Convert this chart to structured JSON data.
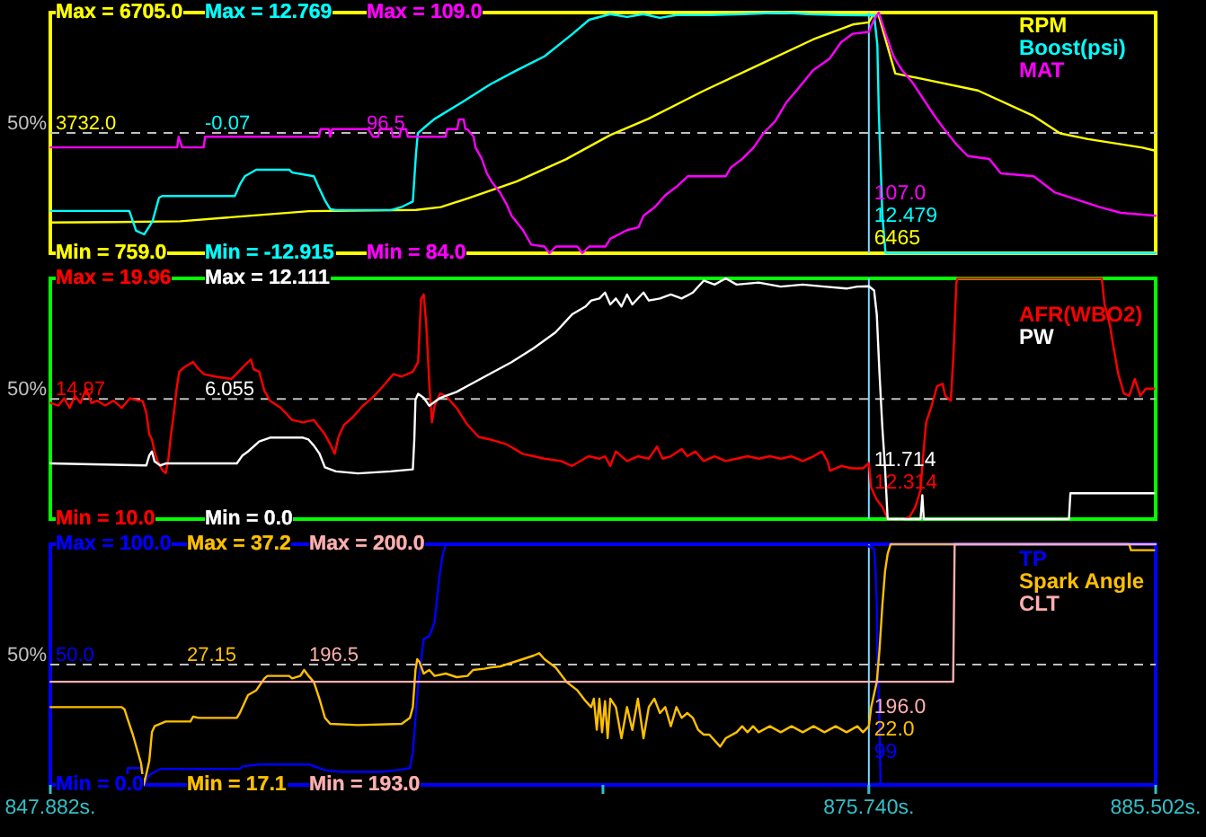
{
  "chart_data": [
    {
      "type": "line",
      "xlim": [
        847.882,
        885.502
      ],
      "tick_labels": "y",
      "legend": "top right",
      "ylim": [
        759,
        6705
      ],
      "yticks": [
        {
          "value": 759,
          "label": "Min = 759.0"
        },
        {
          "value": 3732,
          "label": "3732.0"
        },
        {
          "value": 6705,
          "label": "Max = 6705.0"
        }
      ],
      "y2lim": [
        -12.915,
        12.769
      ],
      "y2ticks": [
        {
          "value": -12.915,
          "label": "Min = -12.915"
        },
        -0.07,
        {
          "value": 12.769,
          "label": "Max = 12.769"
        }
      ],
      "y3lim": [
        84,
        109
      ],
      "y3ticks": [
        {
          "value": 84,
          "label": "Min = 84.0"
        },
        96.5,
        {
          "value": 109,
          "label": "Max = 109.0"
        }
      ],
      "ref_lines": [
        {
          "axis": "y",
          "value": 3732,
          "color": "#c0c0c0",
          "line_style": "dashed"
        },
        {
          "axis": "x",
          "value": 875.74,
          "color": "#7fd8ff"
        }
      ],
      "annotations": [
        "50%",
        "6465",
        "12.479",
        "107.0"
      ],
      "series": [
        {
          "name": "RPM",
          "color": "#ffff00",
          "axis": "y",
          "x": [
            847.89,
            850.13,
            852.31,
            856.69,
            860.33,
            861.17,
            862.07,
            863.75,
            865.43,
            866.94,
            868.23,
            870.14,
            871.99,
            873.84,
            875.19,
            875.74,
            875.92,
            876.08,
            876.64,
            877.6,
            879.45,
            881.35,
            882.25,
            883.2,
            885.05,
            885.45
          ],
          "values": [
            1520,
            1530,
            1550,
            1800,
            1830,
            1900,
            2110,
            2530,
            3080,
            3680,
            4080,
            4780,
            5410,
            6040,
            6410,
            6465,
            6705,
            6620,
            5200,
            5060,
            4780,
            4150,
            3720,
            3580,
            3370,
            3300
          ]
        },
        {
          "name": "Boost(psi)",
          "color": "#00ffff",
          "axis": "y2",
          "x": [
            847.89,
            850.41,
            850.57,
            850.8,
            851.08,
            851.36,
            851.58,
            851.69,
            854.16,
            854.33,
            854.5,
            854.89,
            856.01,
            856.12,
            856.85,
            857.02,
            857.25,
            857.41,
            857.58,
            859.49,
            859.82,
            860.22,
            860.33,
            860.39,
            860.61,
            860.95,
            861.9,
            862.85,
            863.75,
            864.7,
            865.66,
            866.22,
            866.94,
            867.51,
            868.07,
            868.63,
            869.19,
            870.31,
            871.43,
            872.83,
            873.67,
            874.79,
            875.74,
            875.92,
            876.03,
            876.08,
            876.2,
            876.31,
            885.5
          ],
          "values": [
            -8.4,
            -8.4,
            -8.4,
            -10.5,
            -10.9,
            -9.5,
            -7,
            -6.8,
            -6.8,
            -5.6,
            -4.7,
            -4,
            -4,
            -4.3,
            -4.7,
            -5.9,
            -7.4,
            -8.2,
            -8.3,
            -8.3,
            -8,
            -7.4,
            -2.2,
            -0.1,
            0.5,
            1.4,
            3.2,
            5.1,
            6.6,
            8.1,
            10.5,
            12,
            12.6,
            12.3,
            12.6,
            12.2,
            12.5,
            12.5,
            12.6,
            12.769,
            12.6,
            12.5,
            12.479,
            12.5,
            9.3,
            2,
            -8.9,
            -12.915,
            -12.915
          ]
        },
        {
          "name": "MAT",
          "color": "#ff00ff",
          "axis": "y3",
          "x": [
            847.89,
            852.2,
            852.25,
            852.37,
            853.1,
            853.15,
            857.02,
            857.08,
            857.36,
            857.41,
            857.47,
            858.7,
            858.87,
            859.04,
            859.1,
            859.49,
            859.54,
            859.77,
            859.82,
            859.99,
            860.05,
            861.34,
            861.39,
            861.73,
            861.79,
            861.95,
            862.01,
            862.07,
            862.29,
            862.35,
            862.57,
            862.74,
            862.91,
            863.19,
            863.41,
            863.58,
            863.97,
            864.25,
            864.7,
            864.87,
            865.09,
            865.82,
            865.99,
            866.22,
            866.78,
            866.94,
            867.51,
            867.9,
            868.07,
            868.46,
            868.8,
            869.19,
            869.58,
            870.87,
            871.04,
            871.43,
            871.82,
            872.16,
            872.55,
            872.94,
            873.28,
            873.84,
            874.4,
            874.79,
            875.19,
            875.74,
            875.92,
            876.08,
            876.31,
            876.59,
            876.87,
            877.21,
            877.6,
            877.99,
            878.33,
            878.72,
            879.11,
            879.84,
            880.23,
            881.35,
            882.08,
            883.6,
            884.32,
            885.5
          ],
          "values": [
            95,
            95,
            96.1,
            95,
            95,
            96.1,
            96.1,
            96.9,
            96.9,
            96.1,
            96.9,
            96.9,
            96.1,
            96.1,
            96.9,
            96.9,
            96.1,
            96.1,
            96.9,
            96.9,
            96.1,
            96.1,
            96.9,
            96.9,
            97.9,
            97.9,
            96.9,
            96.9,
            96.1,
            95,
            93.8,
            92.3,
            91.4,
            90.3,
            89.1,
            87.9,
            86.4,
            84.9,
            84.7,
            84,
            84.7,
            84.7,
            84,
            84.7,
            84.7,
            85.5,
            86.4,
            86.7,
            87.9,
            88.8,
            90,
            90.9,
            92,
            92,
            92.9,
            93.8,
            95,
            96.5,
            97.7,
            99.7,
            100.9,
            103,
            104.2,
            105.9,
            106.8,
            107,
            108.3,
            109,
            106.8,
            104.4,
            103,
            101.8,
            100,
            98.2,
            96.8,
            95.3,
            94.1,
            93.8,
            92.3,
            92,
            90.3,
            88.8,
            88.2,
            87.9
          ]
        }
      ]
    },
    {
      "type": "line",
      "xlim": [
        847.882,
        885.502
      ],
      "tick_labels": "y",
      "legend": "top right",
      "ylim": [
        10,
        19.96
      ],
      "yticks": [
        {
          "value": 10,
          "label": "Min = 10.0"
        },
        14.97,
        {
          "value": 19.96,
          "label": "Max = 19.96"
        }
      ],
      "y2lim": [
        0,
        12.111
      ],
      "y2ticks": [
        {
          "value": 0,
          "label": "Min = 0.0"
        },
        6.055,
        {
          "value": 12.111,
          "label": "Max = 12.111"
        }
      ],
      "ref_lines": [
        {
          "axis": "y",
          "value": 14.97,
          "color": "#c0c0c0",
          "line_style": "dashed"
        },
        {
          "axis": "x",
          "value": 875.74,
          "color": "#7fd8ff"
        }
      ],
      "annotations": [
        "50%",
        "12.314",
        "11.714"
      ],
      "series": [
        {
          "name": "AFR(WBO2)",
          "color": "#ff0000",
          "axis": "y",
          "x": [
            847.89,
            848.16,
            848.35,
            848.54,
            848.72,
            848.91,
            849.1,
            849.28,
            849.47,
            849.75,
            850.03,
            850.31,
            850.59,
            850.87,
            851.02,
            851.15,
            851.25,
            851.34,
            851.43,
            851.53,
            851.71,
            851.81,
            851.9,
            851.99,
            852.09,
            852.18,
            852.27,
            852.46,
            852.74,
            852.93,
            853.11,
            853.49,
            854.05,
            854.61,
            854.71,
            854.8,
            854.99,
            855.17,
            855.36,
            855.73,
            856.11,
            856.48,
            856.85,
            857.23,
            857.41,
            857.56,
            857.69,
            857.88,
            858.16,
            858.53,
            858.91,
            859.28,
            859.56,
            859.84,
            860.22,
            860.4,
            860.5,
            860.59,
            860.68,
            860.78,
            860.87,
            860.96,
            861.15,
            861.34,
            861.71,
            862.08,
            862.46,
            862.83,
            863.4,
            863.96,
            864.33,
            864.7,
            865.26,
            865.64,
            866.2,
            866.57,
            866.76,
            866.94,
            867.13,
            867.32,
            867.51,
            867.88,
            868.25,
            868.53,
            868.72,
            869,
            869.37,
            869.56,
            869.84,
            870.12,
            870.49,
            870.87,
            871.24,
            871.61,
            871.99,
            872.37,
            872.74,
            873.11,
            873.49,
            873.86,
            874.14,
            874.33,
            874.42,
            874.8,
            875.17,
            875.54,
            875.74,
            875.82,
            876.01,
            876.2,
            876.38,
            876.94,
            877.13,
            877.32,
            877.5,
            877.6,
            877.69,
            877.88,
            878.06,
            878.25,
            878.34,
            878.53,
            878.62,
            878.72,
            878.76,
            883.67,
            883.76,
            883.95,
            884.04,
            884.23,
            884.42,
            884.6,
            884.79,
            884.98,
            885.17,
            885.45
          ],
          "values": [
            14.8,
            14.7,
            15,
            14.6,
            15.1,
            14.8,
            15.4,
            14.8,
            14.9,
            14.7,
            14.9,
            14.6,
            15,
            14.9,
            14.9,
            14.4,
            13.5,
            13.3,
            12.8,
            12.4,
            12,
            11.9,
            12.5,
            13.5,
            14.4,
            15.4,
            16.1,
            16.3,
            16.5,
            16.2,
            16,
            15.9,
            15.8,
            16.5,
            16.6,
            16.2,
            16.1,
            15.3,
            14.9,
            14.6,
            14.1,
            14,
            14.1,
            13.5,
            13.1,
            12.7,
            13.4,
            13.9,
            14.2,
            14.7,
            15.1,
            15.6,
            16,
            15.9,
            16.1,
            16.5,
            19.1,
            19.3,
            18,
            15.6,
            14,
            14.7,
            15.2,
            15.1,
            14.6,
            13.9,
            13.4,
            13.3,
            13.1,
            12.7,
            12.6,
            12.5,
            12.4,
            12.2,
            12.6,
            12.5,
            12.6,
            12.2,
            12.8,
            12.6,
            12.4,
            12.6,
            12.5,
            13,
            12.5,
            12.6,
            12.9,
            12.6,
            12.8,
            12.4,
            12.6,
            12.4,
            12.5,
            12.6,
            12.5,
            12.6,
            12.5,
            12.6,
            12.4,
            12.6,
            12.8,
            12.4,
            12,
            12.2,
            12.1,
            12.1,
            12.314,
            11.3,
            10.8,
            10.5,
            10,
            10,
            10.1,
            10.5,
            11.2,
            12.8,
            14,
            14.7,
            15.5,
            15.6,
            15.1,
            14.9,
            16.8,
            19.8,
            19.96,
            19.96,
            18.9,
            18,
            17.3,
            16,
            15.2,
            15.1,
            15.8,
            15.1,
            15.4,
            15.4
          ]
        },
        {
          "name": "PW",
          "color": "#ffffff",
          "axis": "y2",
          "x": [
            847.89,
            851.15,
            851.25,
            851.34,
            851.43,
            851.62,
            851.81,
            854.23,
            854.42,
            854.61,
            854.99,
            855.36,
            856.48,
            856.67,
            856.85,
            857.04,
            857.23,
            857.6,
            858.35,
            859.47,
            860.22,
            860.27,
            860.31,
            860.4,
            860.59,
            860.78,
            860.96,
            861.15,
            861.71,
            862.08,
            862.83,
            863.58,
            864.33,
            865.08,
            865.64,
            866.1,
            866.29,
            866.57,
            866.76,
            866.94,
            867.13,
            867.32,
            867.51,
            867.69,
            868.07,
            868.25,
            868.63,
            869,
            869.37,
            869.75,
            870.12,
            870.49,
            870.87,
            871.24,
            871.99,
            872.74,
            873.49,
            874.23,
            874.98,
            875.35,
            875.74,
            875.92,
            876.01,
            876.1,
            876.2,
            876.29,
            876.38,
            877.5,
            877.56,
            877.61,
            882.55,
            882.6,
            885.45
          ],
          "values": [
            2.8,
            2.7,
            3.2,
            3.4,
            2.9,
            2.7,
            2.8,
            2.8,
            3.2,
            3.4,
            3.9,
            4.1,
            4.1,
            4,
            3.7,
            3.3,
            2.6,
            2.4,
            2.3,
            2.4,
            2.5,
            4,
            6,
            6.3,
            6.1,
            5.7,
            5.9,
            6.1,
            6.4,
            6.7,
            7.3,
            7.9,
            8.6,
            9.4,
            10.3,
            10.7,
            11,
            11.1,
            11.4,
            10.8,
            11.1,
            10.7,
            11.3,
            10.8,
            11.4,
            11,
            11.1,
            11.3,
            11.1,
            11.4,
            12,
            11.8,
            12.111,
            11.8,
            11.9,
            11.7,
            11.8,
            11.7,
            11.6,
            11.7,
            11.714,
            11.5,
            10.3,
            7.4,
            4.6,
            2.6,
            0,
            0,
            1.2,
            0,
            0,
            1.3,
            1.3
          ]
        }
      ]
    },
    {
      "type": "line",
      "xlim": [
        847.882,
        885.502
      ],
      "legend": "top right",
      "xticks": [
        {
          "value": 847.882,
          "label": "847.882s."
        },
        {
          "value": 857.29,
          "label": null
        },
        {
          "value": 866.69,
          "label": null
        },
        {
          "value": 875.74,
          "label": "875.740s."
        },
        {
          "value": 885.502,
          "label": "885.502s."
        }
      ],
      "ylim": [
        0,
        100
      ],
      "yticks": [
        {
          "value": 0,
          "label": "Min = 0.0"
        },
        {
          "value": 50,
          "label": "50.0"
        },
        {
          "value": 100,
          "label": "Max = 100.0"
        }
      ],
      "y2lim": [
        17.1,
        37.2
      ],
      "y2ticks": [
        {
          "value": 17.1,
          "label": "Min = 17.1"
        },
        27.15,
        {
          "value": 37.2,
          "label": "Max = 37.2"
        }
      ],
      "y3lim": [
        193,
        200
      ],
      "y3ticks": [
        {
          "value": 193,
          "label": "Min = 193.0"
        },
        196.5,
        {
          "value": 200,
          "label": "Max = 200.0"
        }
      ],
      "ref_lines": [
        {
          "axis": "y",
          "value": 50,
          "color": "#c0c0c0",
          "line_style": "dashed"
        },
        {
          "axis": "x",
          "value": 875.74,
          "color": "#7fd8ff"
        }
      ],
      "annotations": [
        "50%",
        "99",
        "22.0",
        "196.0"
      ],
      "series": [
        {
          "name": "TP",
          "color": "#0000ff",
          "axis": "y",
          "x": [
            847.89,
            850.46,
            850.52,
            850.97,
            851.08,
            851.25,
            851.62,
            854.33,
            854.42,
            854.99,
            856.67,
            857.04,
            857.23,
            857.79,
            859.1,
            859.66,
            860.12,
            860.22,
            860.31,
            860.4,
            860.59,
            860.78,
            860.96,
            861.06,
            861.15,
            861.24,
            861.34,
            875.63,
            875.74,
            875.92,
            875.97,
            876.01,
            876.04,
            876.1,
            876.14,
            885.5
          ],
          "values": [
            0,
            0,
            7,
            7,
            0,
            4.2,
            6.6,
            6.6,
            7.7,
            8.5,
            8.5,
            7,
            6.1,
            5.4,
            5.4,
            6.1,
            7,
            13.6,
            27.7,
            41.8,
            60.6,
            61.8,
            67.6,
            79.4,
            88.7,
            95.8,
            100,
            100,
            99,
            98.1,
            88.7,
            74.6,
            48.8,
            27.7,
            0,
            0
          ]
        },
        {
          "name": "Spark Angle",
          "color": "#ffc000",
          "axis": "y2",
          "x": [
            847.89,
            850.31,
            850.41,
            850.5,
            850.69,
            850.97,
            851.06,
            851.15,
            851.25,
            851.34,
            851.43,
            851.81,
            852.65,
            852.74,
            852.93,
            854.23,
            854.33,
            854.61,
            854.89,
            855.17,
            855.27,
            856.01,
            856.11,
            856.39,
            856.52,
            856.67,
            856.85,
            857.04,
            857.23,
            857.41,
            858.35,
            859.84,
            860.12,
            860.22,
            860.31,
            860.37,
            860.44,
            860.59,
            860.78,
            860.96,
            861.34,
            861.71,
            862.08,
            862.27,
            862.65,
            862.83,
            863.2,
            863.96,
            864.33,
            864.52,
            864.7,
            865.08,
            865.45,
            865.82,
            866.1,
            866.29,
            866.38,
            866.48,
            866.57,
            866.66,
            866.76,
            866.85,
            866.94,
            867.13,
            867.32,
            867.51,
            867.69,
            867.88,
            868.07,
            868.25,
            868.44,
            868.63,
            868.81,
            869,
            869.19,
            869.37,
            869.56,
            869.75,
            869.93,
            870.12,
            870.31,
            870.68,
            870.87,
            871.24,
            871.43,
            871.61,
            871.8,
            871.99,
            872.37,
            872.74,
            873.11,
            873.49,
            873.86,
            874.23,
            874.61,
            874.98,
            875.35,
            875.54,
            875.74,
            875.82,
            876.01,
            876.1,
            876.2,
            876.29,
            876.38,
            876.48,
            884.6,
            884.66,
            885.45
          ],
          "values": [
            23.6,
            23.6,
            23.4,
            22.7,
            21.3,
            18.9,
            17.1,
            18,
            19.1,
            21.5,
            22,
            22.4,
            22.4,
            22.8,
            22.7,
            22.7,
            23.1,
            24.6,
            25,
            26,
            26.2,
            26.2,
            26,
            26.2,
            26.7,
            26.2,
            25.7,
            24.3,
            22.7,
            22.2,
            22.1,
            22.2,
            22.7,
            23.6,
            26.7,
            27.6,
            27.4,
            26.4,
            26.7,
            26.2,
            26.4,
            26.1,
            26.2,
            26.7,
            26.8,
            26.9,
            27,
            27.6,
            27.9,
            28.1,
            27.6,
            26.9,
            25.7,
            25,
            24.1,
            23.6,
            24.3,
            21.7,
            24.3,
            21.5,
            24.1,
            21,
            24.3,
            23.6,
            21,
            23.6,
            21.7,
            24.3,
            21,
            23.6,
            24.3,
            23.1,
            23.6,
            22,
            23.6,
            22.7,
            23.1,
            22.7,
            21.7,
            21.3,
            21.3,
            20.3,
            21,
            21.5,
            22,
            21.5,
            22,
            21.5,
            22,
            21.5,
            22,
            21.5,
            22,
            21.5,
            22,
            21.5,
            22,
            21.5,
            22,
            23.6,
            25.7,
            28.3,
            32.1,
            34.9,
            36.4,
            37.2,
            37.2,
            36.7,
            36.7
          ]
        },
        {
          "name": "CLT",
          "color": "#ffafaf",
          "axis": "y3",
          "x": [
            847.89,
            875.74,
            878.61,
            878.66,
            885.5
          ],
          "values": [
            196,
            196,
            196,
            200,
            200
          ]
        }
      ]
    }
  ]
}
